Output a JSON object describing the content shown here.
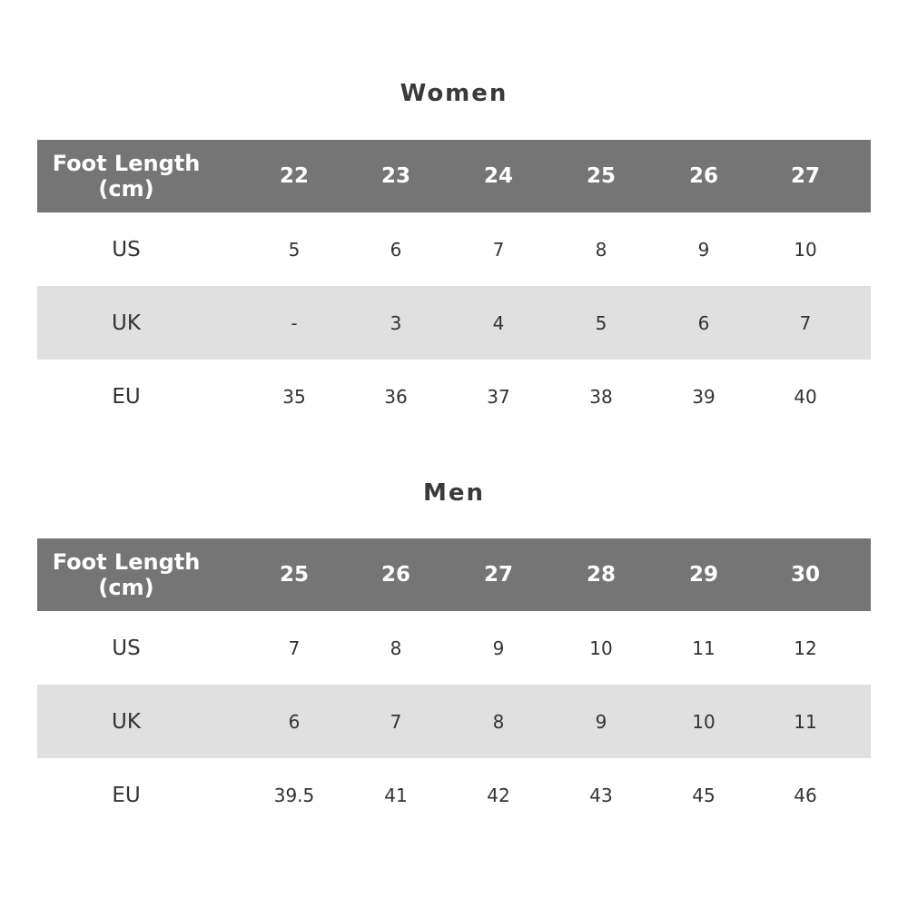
{
  "tables": [
    {
      "title": "Women",
      "header_label": "Foot Length\n(cm)",
      "lengths": [
        "22",
        "23",
        "24",
        "25",
        "26",
        "27"
      ],
      "rows": [
        {
          "label": "US",
          "values": [
            "5",
            "6",
            "7",
            "8",
            "9",
            "10"
          ]
        },
        {
          "label": "UK",
          "values": [
            "-",
            "3",
            "4",
            "5",
            "6",
            "7"
          ]
        },
        {
          "label": "EU",
          "values": [
            "35",
            "36",
            "37",
            "38",
            "39",
            "40"
          ]
        }
      ]
    },
    {
      "title": "Men",
      "header_label": "Foot Length\n(cm)",
      "lengths": [
        "25",
        "26",
        "27",
        "28",
        "29",
        "30"
      ],
      "rows": [
        {
          "label": "US",
          "values": [
            "7",
            "8",
            "9",
            "10",
            "11",
            "12"
          ]
        },
        {
          "label": "UK",
          "values": [
            "6",
            "7",
            "8",
            "9",
            "10",
            "11"
          ]
        },
        {
          "label": "EU",
          "values": [
            "39.5",
            "41",
            "42",
            "43",
            "45",
            "46"
          ]
        }
      ]
    }
  ],
  "colors": {
    "header": "#757575",
    "alt_row": "#e0e0e0",
    "text": "#333333"
  }
}
